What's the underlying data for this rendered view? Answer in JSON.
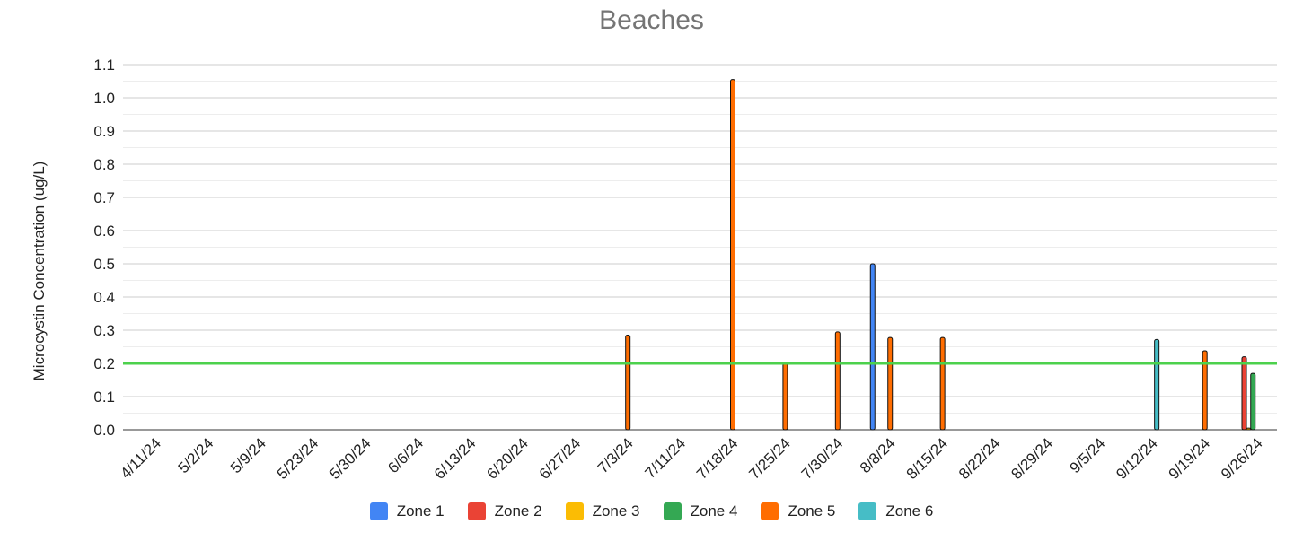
{
  "chart_data": {
    "type": "bar",
    "title": "Beaches",
    "xlabel": "",
    "ylabel": "Microcystin Concentration (ug/L)",
    "ylim": [
      0,
      1.1
    ],
    "yticks": [
      "0.0",
      "0.1",
      "0.2",
      "0.3",
      "0.4",
      "0.5",
      "0.6",
      "0.7",
      "0.8",
      "0.9",
      "1.0",
      "1.1"
    ],
    "categories": [
      "4/11/24",
      "5/2/24",
      "5/9/24",
      "5/23/24",
      "5/30/24",
      "6/6/24",
      "6/13/24",
      "6/20/24",
      "6/27/24",
      "7/3/24",
      "7/11/24",
      "7/18/24",
      "7/25/24",
      "7/30/24",
      "8/8/24",
      "8/15/24",
      "8/22/24",
      "8/29/24",
      "9/5/24",
      "9/12/24",
      "9/19/24",
      "9/26/24"
    ],
    "series": [
      {
        "name": "Zone 1",
        "color": "#4285f4",
        "values": [
          null,
          null,
          null,
          null,
          null,
          null,
          null,
          null,
          null,
          null,
          null,
          null,
          null,
          null,
          0.5,
          null,
          null,
          null,
          null,
          null,
          null,
          null
        ]
      },
      {
        "name": "Zone 2",
        "color": "#ea4335",
        "values": [
          null,
          null,
          null,
          null,
          null,
          null,
          null,
          null,
          null,
          null,
          null,
          null,
          null,
          null,
          null,
          null,
          null,
          null,
          null,
          null,
          null,
          0.22
        ]
      },
      {
        "name": "Zone 3",
        "color": "#fbbc04",
        "values": [
          null,
          null,
          null,
          null,
          null,
          null,
          null,
          null,
          null,
          null,
          null,
          null,
          null,
          null,
          null,
          null,
          null,
          null,
          null,
          null,
          null,
          0.005
        ]
      },
      {
        "name": "Zone 4",
        "color": "#34a853",
        "values": [
          null,
          null,
          null,
          null,
          null,
          null,
          null,
          null,
          null,
          null,
          null,
          null,
          null,
          null,
          null,
          null,
          null,
          null,
          null,
          null,
          null,
          0.17
        ]
      },
      {
        "name": "Zone 5",
        "color": "#ff6d01",
        "values": [
          null,
          null,
          null,
          null,
          null,
          null,
          null,
          null,
          null,
          0.285,
          null,
          1.055,
          0.2,
          0.295,
          0.278,
          0.278,
          null,
          null,
          null,
          null,
          0.238,
          null
        ]
      },
      {
        "name": "Zone 6",
        "color": "#46bdc6",
        "values": [
          null,
          null,
          null,
          null,
          null,
          null,
          null,
          null,
          null,
          null,
          null,
          null,
          null,
          null,
          null,
          null,
          null,
          null,
          null,
          0.272,
          null,
          null
        ]
      }
    ],
    "threshold": {
      "value": 0.2,
      "color": "#4cd14c"
    },
    "grid": true,
    "legend_position": "bottom"
  }
}
